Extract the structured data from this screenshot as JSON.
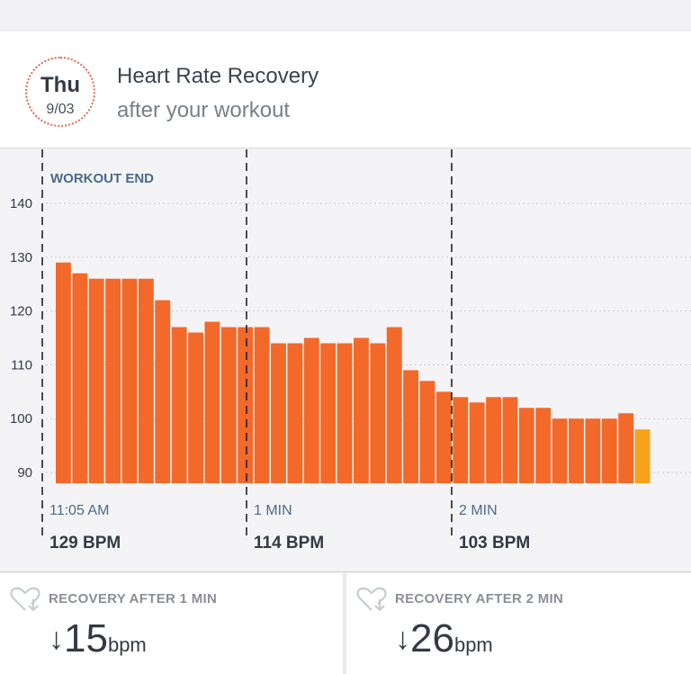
{
  "header": {
    "day": "Thu",
    "date": "9/03",
    "title": "Heart Rate Recovery",
    "subtitle": "after your workout"
  },
  "chart_data": {
    "type": "bar",
    "annotation": "WORKOUT END",
    "ylim": [
      88,
      143
    ],
    "yticks": [
      140,
      130,
      120,
      110,
      100,
      90
    ],
    "grid": true,
    "markers": [
      {
        "time": "11:05 AM",
        "bpm": "129 BPM"
      },
      {
        "time": "1 MIN",
        "bpm": "114 BPM"
      },
      {
        "time": "2 MIN",
        "bpm": "103 BPM"
      }
    ],
    "values": [
      129,
      127,
      126,
      126,
      126,
      126,
      122,
      117,
      116,
      118,
      117,
      117,
      117,
      114,
      114,
      115,
      114,
      114,
      115,
      114,
      117,
      109,
      107,
      105,
      104,
      103,
      104,
      104,
      102,
      102,
      100,
      100,
      100,
      100,
      101,
      98
    ],
    "colors": {
      "bar": "#f2692a",
      "last_bar": "#f7a21b",
      "grid": "#c9c9ce",
      "divider": "#222222",
      "annotation": "#4a6a8c",
      "tick": "#333a45",
      "marker_time": "#4a6a8c",
      "marker_bpm": "#333a45"
    }
  },
  "cards": [
    {
      "icon": "heart-down-icon",
      "label": "RECOVERY AFTER 1 MIN",
      "arrow": "↓",
      "value": "15",
      "unit": "bpm"
    },
    {
      "icon": "heart-down-icon",
      "label": "RECOVERY AFTER 2 MIN",
      "arrow": "↓",
      "value": "26",
      "unit": "bpm"
    }
  ]
}
